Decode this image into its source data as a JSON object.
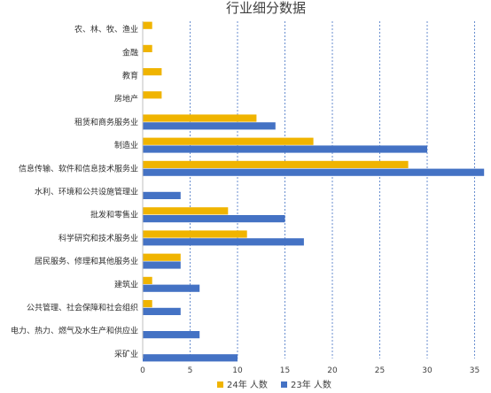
{
  "chart_data": {
    "type": "bar",
    "orientation": "horizontal",
    "title": "行业细分数据",
    "categories": [
      "农、林、牧、渔业",
      "金融",
      "教育",
      "房地产",
      "租赁和商务服务业",
      "制造业",
      "信息传输、软件和信息技术服务业",
      "水利、环境和公共设施管理业",
      "批发和零售业",
      "科学研究和技术服务业",
      "居民服务、修理和其他服务业",
      "建筑业",
      "公共管理、社会保障和社会组织",
      "电力、热力、燃气及水生产和供应业",
      "采矿业"
    ],
    "series": [
      {
        "name": "24年  人数",
        "color": "#f0b400",
        "values": [
          1,
          1,
          2,
          2,
          12,
          18,
          28,
          0,
          9,
          11,
          4,
          1,
          1,
          0,
          0
        ]
      },
      {
        "name": "23年  人数",
        "color": "#4472c4",
        "values": [
          0,
          0,
          0,
          0,
          14,
          30,
          36,
          4,
          15,
          17,
          4,
          6,
          4,
          6,
          10
        ]
      }
    ],
    "xlim": [
      0,
      36
    ],
    "xticks": [
      0,
      5,
      10,
      15,
      20,
      25,
      30,
      35
    ],
    "grid": true,
    "legend_position": "bottom"
  }
}
